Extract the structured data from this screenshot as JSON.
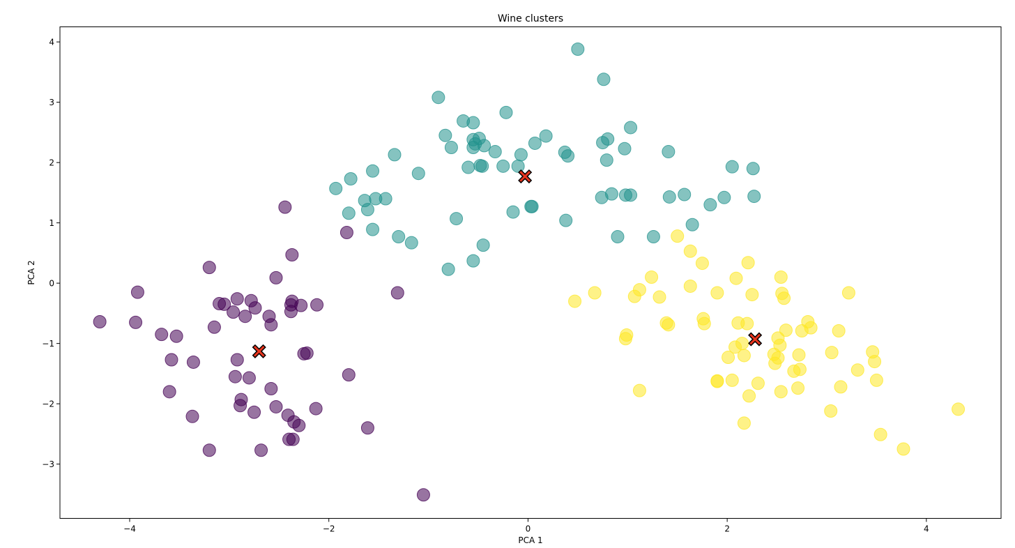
{
  "chart_data": {
    "type": "scatter",
    "title": "Wine clusters",
    "xlabel": "PCA 1",
    "ylabel": "PCA 2",
    "xlim": [
      -4.7,
      4.75
    ],
    "ylim": [
      -3.9,
      4.25
    ],
    "xticks": [
      -4,
      -2,
      0,
      2,
      4
    ],
    "yticks": [
      -3,
      -2,
      -1,
      0,
      1,
      2,
      3,
      4
    ],
    "xtick_labels": [
      "−4",
      "−2",
      "0",
      "2",
      "4"
    ],
    "ytick_labels": [
      "−3",
      "−2",
      "−1",
      "0",
      "1",
      "2",
      "3",
      "4"
    ],
    "grid": false,
    "series": [
      {
        "color": "#440154",
        "points": [
          [
            -4.3,
            -0.64
          ],
          [
            -3.92,
            -0.15
          ],
          [
            -3.94,
            -0.65
          ],
          [
            -3.68,
            -0.85
          ],
          [
            -3.53,
            -0.88
          ],
          [
            -3.58,
            -1.27
          ],
          [
            -3.36,
            -1.31
          ],
          [
            -3.6,
            -1.8
          ],
          [
            -3.37,
            -2.21
          ],
          [
            -3.2,
            -2.77
          ],
          [
            -3.2,
            0.26
          ],
          [
            -3.1,
            -0.34
          ],
          [
            -3.15,
            -0.73
          ],
          [
            -3.05,
            -0.35
          ],
          [
            -2.96,
            -0.48
          ],
          [
            -2.92,
            -0.26
          ],
          [
            -2.84,
            -0.55
          ],
          [
            -2.74,
            -0.41
          ],
          [
            -2.78,
            -0.29
          ],
          [
            -2.6,
            -0.55
          ],
          [
            -2.58,
            -0.69
          ],
          [
            -2.53,
            0.09
          ],
          [
            -2.44,
            1.26
          ],
          [
            -2.37,
            0.47
          ],
          [
            -2.37,
            -0.3
          ],
          [
            -2.38,
            -0.36
          ],
          [
            -2.38,
            -0.47
          ],
          [
            -2.28,
            -0.37
          ],
          [
            -2.12,
            -0.36
          ],
          [
            -2.92,
            -1.27
          ],
          [
            -2.94,
            -1.55
          ],
          [
            -2.8,
            -1.57
          ],
          [
            -2.88,
            -1.93
          ],
          [
            -2.89,
            -2.03
          ],
          [
            -2.75,
            -2.14
          ],
          [
            -2.58,
            -1.75
          ],
          [
            -2.53,
            -2.05
          ],
          [
            -2.41,
            -2.19
          ],
          [
            -2.35,
            -2.3
          ],
          [
            -2.3,
            -2.36
          ],
          [
            -2.13,
            -2.08
          ],
          [
            -2.22,
            -1.16
          ],
          [
            -2.25,
            -1.17
          ],
          [
            -2.68,
            -2.77
          ],
          [
            -2.4,
            -2.59
          ],
          [
            -2.36,
            -2.59
          ],
          [
            -1.82,
            0.84
          ],
          [
            -1.8,
            -1.52
          ],
          [
            -1.61,
            -2.4
          ],
          [
            -1.31,
            -0.16
          ],
          [
            -1.05,
            -3.51
          ]
        ]
      },
      {
        "color": "#21918c",
        "points": [
          [
            -1.93,
            1.57
          ],
          [
            -1.78,
            1.73
          ],
          [
            -1.8,
            1.16
          ],
          [
            -1.64,
            1.37
          ],
          [
            -1.61,
            1.22
          ],
          [
            -1.56,
            1.86
          ],
          [
            -1.53,
            1.4
          ],
          [
            -1.43,
            1.4
          ],
          [
            -1.56,
            0.89
          ],
          [
            -1.3,
            0.77
          ],
          [
            -1.34,
            2.13
          ],
          [
            -1.1,
            1.82
          ],
          [
            -1.17,
            0.67
          ],
          [
            -0.9,
            3.08
          ],
          [
            -0.83,
            2.45
          ],
          [
            -0.77,
            2.25
          ],
          [
            -0.65,
            2.69
          ],
          [
            -0.6,
            1.92
          ],
          [
            -0.55,
            2.66
          ],
          [
            -0.55,
            2.38
          ],
          [
            -0.53,
            2.31
          ],
          [
            -0.55,
            2.25
          ],
          [
            -0.49,
            2.4
          ],
          [
            -0.44,
            2.28
          ],
          [
            -0.48,
            1.95
          ],
          [
            -0.46,
            1.94
          ],
          [
            -0.33,
            2.18
          ],
          [
            -0.25,
            1.94
          ],
          [
            -0.22,
            2.83
          ],
          [
            -0.1,
            1.94
          ],
          [
            -0.07,
            2.13
          ],
          [
            0.07,
            2.32
          ],
          [
            0.18,
            2.44
          ],
          [
            -0.15,
            1.18
          ],
          [
            0.03,
            1.27
          ],
          [
            0.04,
            1.27
          ],
          [
            -0.72,
            1.07
          ],
          [
            -0.45,
            0.63
          ],
          [
            -0.55,
            0.37
          ],
          [
            -0.8,
            0.23
          ],
          [
            0.37,
            2.17
          ],
          [
            0.4,
            2.11
          ],
          [
            0.5,
            3.88
          ],
          [
            0.38,
            1.04
          ],
          [
            0.76,
            3.38
          ],
          [
            0.8,
            2.39
          ],
          [
            0.75,
            2.33
          ],
          [
            0.79,
            2.04
          ],
          [
            0.74,
            1.42
          ],
          [
            0.84,
            1.48
          ],
          [
            0.97,
            2.23
          ],
          [
            1.03,
            2.58
          ],
          [
            0.98,
            1.46
          ],
          [
            1.03,
            1.46
          ],
          [
            0.9,
            0.77
          ],
          [
            1.41,
            2.18
          ],
          [
            1.42,
            1.43
          ],
          [
            1.57,
            1.47
          ],
          [
            1.26,
            0.77
          ],
          [
            1.65,
            0.97
          ],
          [
            1.83,
            1.3
          ],
          [
            1.97,
            1.42
          ],
          [
            2.05,
            1.93
          ],
          [
            2.26,
            1.9
          ],
          [
            2.27,
            1.44
          ]
        ]
      },
      {
        "color": "#fde725",
        "points": [
          [
            0.47,
            -0.3
          ],
          [
            0.67,
            -0.16
          ],
          [
            0.99,
            -0.86
          ],
          [
            0.98,
            -0.92
          ],
          [
            1.07,
            -0.22
          ],
          [
            1.12,
            -0.11
          ],
          [
            1.24,
            0.1
          ],
          [
            1.12,
            -1.78
          ],
          [
            1.32,
            -0.23
          ],
          [
            1.39,
            -0.66
          ],
          [
            1.41,
            -0.69
          ],
          [
            1.5,
            0.78
          ],
          [
            1.63,
            0.53
          ],
          [
            1.63,
            -0.05
          ],
          [
            1.75,
            0.33
          ],
          [
            1.76,
            -0.59
          ],
          [
            1.77,
            -0.67
          ],
          [
            1.9,
            -0.16
          ],
          [
            1.9,
            -1.63
          ],
          [
            1.9,
            -1.62
          ],
          [
            2.01,
            -1.23
          ],
          [
            2.05,
            -1.61
          ],
          [
            2.08,
            -1.06
          ],
          [
            2.09,
            0.08
          ],
          [
            2.11,
            -0.66
          ],
          [
            2.15,
            -1.0
          ],
          [
            2.17,
            -1.2
          ],
          [
            2.17,
            -2.32
          ],
          [
            2.2,
            -0.67
          ],
          [
            2.21,
            0.34
          ],
          [
            2.22,
            -1.87
          ],
          [
            2.25,
            -0.19
          ],
          [
            2.31,
            -1.66
          ],
          [
            2.47,
            -1.18
          ],
          [
            2.48,
            -1.33
          ],
          [
            2.51,
            -1.24
          ],
          [
            2.51,
            -0.91
          ],
          [
            2.53,
            -1.03
          ],
          [
            2.54,
            0.1
          ],
          [
            2.55,
            -0.17
          ],
          [
            2.57,
            -0.25
          ],
          [
            2.54,
            -1.8
          ],
          [
            2.59,
            -0.78
          ],
          [
            2.67,
            -1.46
          ],
          [
            2.71,
            -1.74
          ],
          [
            2.72,
            -1.19
          ],
          [
            2.73,
            -1.43
          ],
          [
            2.75,
            -0.79
          ],
          [
            2.81,
            -0.64
          ],
          [
            2.84,
            -0.74
          ],
          [
            3.05,
            -1.15
          ],
          [
            3.04,
            -2.12
          ],
          [
            3.12,
            -0.79
          ],
          [
            3.14,
            -1.72
          ],
          [
            3.22,
            -0.16
          ],
          [
            3.31,
            -1.44
          ],
          [
            3.46,
            -1.14
          ],
          [
            3.48,
            -1.3
          ],
          [
            3.5,
            -1.61
          ],
          [
            3.54,
            -2.51
          ],
          [
            3.77,
            -2.75
          ],
          [
            4.32,
            -2.09
          ]
        ]
      }
    ],
    "centroids": [
      {
        "x": -2.7,
        "y": -1.13,
        "color": "#e8351e"
      },
      {
        "x": -0.03,
        "y": 1.77,
        "color": "#e8351e"
      },
      {
        "x": 2.28,
        "y": -0.93,
        "color": "#e8351e"
      }
    ]
  }
}
